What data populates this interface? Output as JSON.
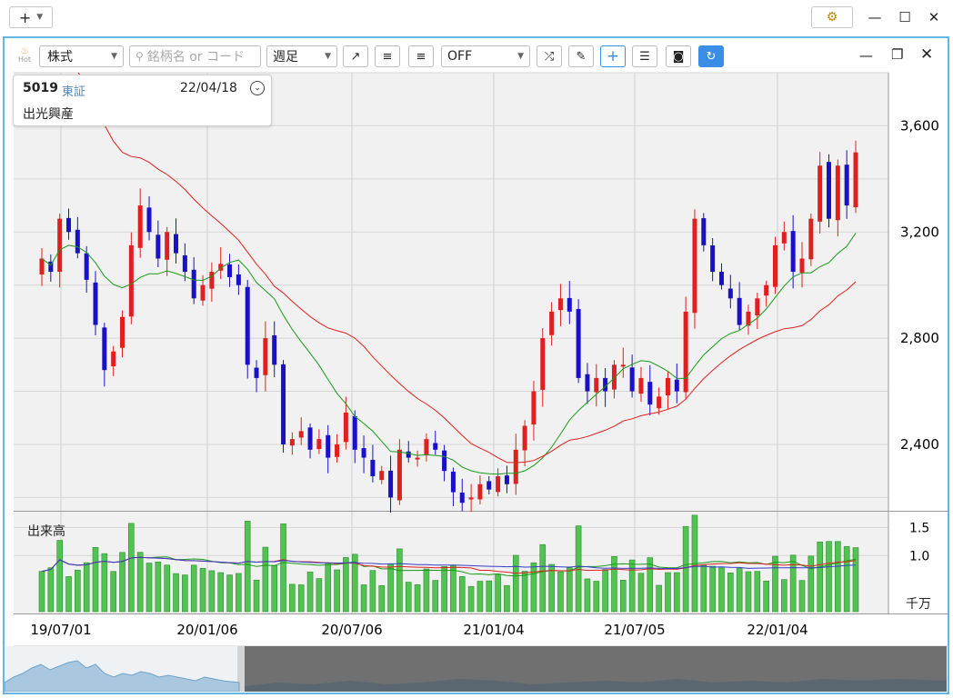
{
  "window": {
    "add_icon": "plus-icon",
    "settings_icon": "gear-icon",
    "minimize_icon": "minimize-icon",
    "maximize_icon": "maximize-icon",
    "close_icon": "close-icon"
  },
  "toolbar": {
    "hot_label": "Hot",
    "category_select": "株式",
    "search_placeholder": "銘柄名 or コード",
    "period_select": "週足",
    "indicator_select": "OFF",
    "icons": [
      "trend-line-icon",
      "align-left-icon",
      "align-right-icon",
      "shuffle-icon",
      "pencil-icon",
      "crosshair-icon",
      "settings-sliders-icon",
      "camera-icon",
      "refresh-icon"
    ]
  },
  "info": {
    "code": "5019",
    "market": "東証",
    "date": "22/04/18",
    "name": "出光興産"
  },
  "volume_panel": {
    "label": "出来高",
    "unit": "千万"
  },
  "colors": {
    "up": "#e02020",
    "down": "#1a10c8",
    "ma_short": "#1a9a1a",
    "ma_long": "#e02020",
    "accent": "#3a8ee6"
  },
  "chart_data": {
    "type": "candlestick",
    "x_ticks": [
      "19/07/01",
      "20/01/06",
      "20/07/06",
      "21/01/04",
      "21/07/05",
      "22/01/04"
    ],
    "y_ticks": [
      "2,400",
      "2,800",
      "3,200",
      "3,600"
    ],
    "y_range": [
      2150,
      3800
    ],
    "volume_ticks": [
      "1.0",
      "1.5"
    ],
    "volume_range": [
      0,
      1.75
    ],
    "close": [
      3100,
      3050,
      3250,
      3200,
      3120,
      3020,
      2850,
      2680,
      2750,
      2880,
      3150,
      3300,
      3200,
      3100,
      3200,
      3120,
      3050,
      2950,
      3000,
      3050,
      3080,
      3030,
      3000,
      2700,
      2650,
      2800,
      2700,
      2400,
      2420,
      2450,
      2380,
      2420,
      2350,
      2400,
      2520,
      2380,
      2350,
      2280,
      2300,
      2200,
      2380,
      2350,
      2350,
      2420,
      2380,
      2300,
      2220,
      2180,
      2200,
      2250,
      2230,
      2280,
      2250,
      2380,
      2470,
      2600,
      2800,
      2900,
      2950,
      2900,
      2650,
      2600,
      2650,
      2600,
      2700,
      2700,
      2600,
      2650,
      2550,
      2580,
      2650,
      2600,
      2900,
      3250,
      3150,
      3050,
      3000,
      2950,
      2850,
      2900,
      2950,
      3000,
      3150,
      3200,
      3050,
      3100,
      3250,
      3450,
      3250,
      3450,
      3300,
      3500
    ]
  }
}
